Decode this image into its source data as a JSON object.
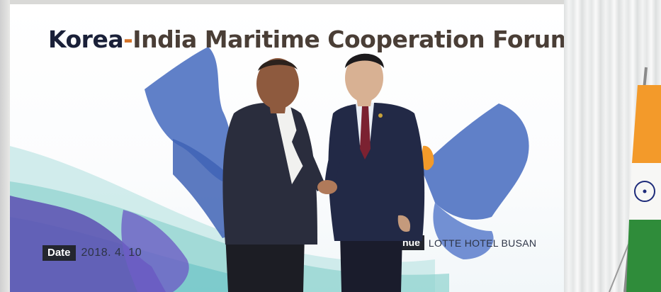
{
  "banner": {
    "title_part1": "Korea",
    "title_dash": "-",
    "title_part2": "India Maritime Cooperation Forum",
    "date_label": "Date",
    "date_value": "2018. 4. 10",
    "venue_label": "nue",
    "venue_value": "LOTTE HOTEL BUSAN"
  },
  "colors": {
    "title_dark": "#1a2038",
    "title_brown": "#4a3e36",
    "accent_orange": "#d5742a",
    "map_blue": "#4f72c2",
    "sea_teal": "#8fd3cf",
    "flag_saffron": "#f39a2a",
    "flag_green": "#2f8c3a",
    "chakra_blue": "#1d2b7a"
  },
  "scene": {
    "subjects": [
      "man-in-blazer",
      "man-in-suit"
    ],
    "props": [
      "indian-flag",
      "curtain",
      "banner"
    ]
  }
}
